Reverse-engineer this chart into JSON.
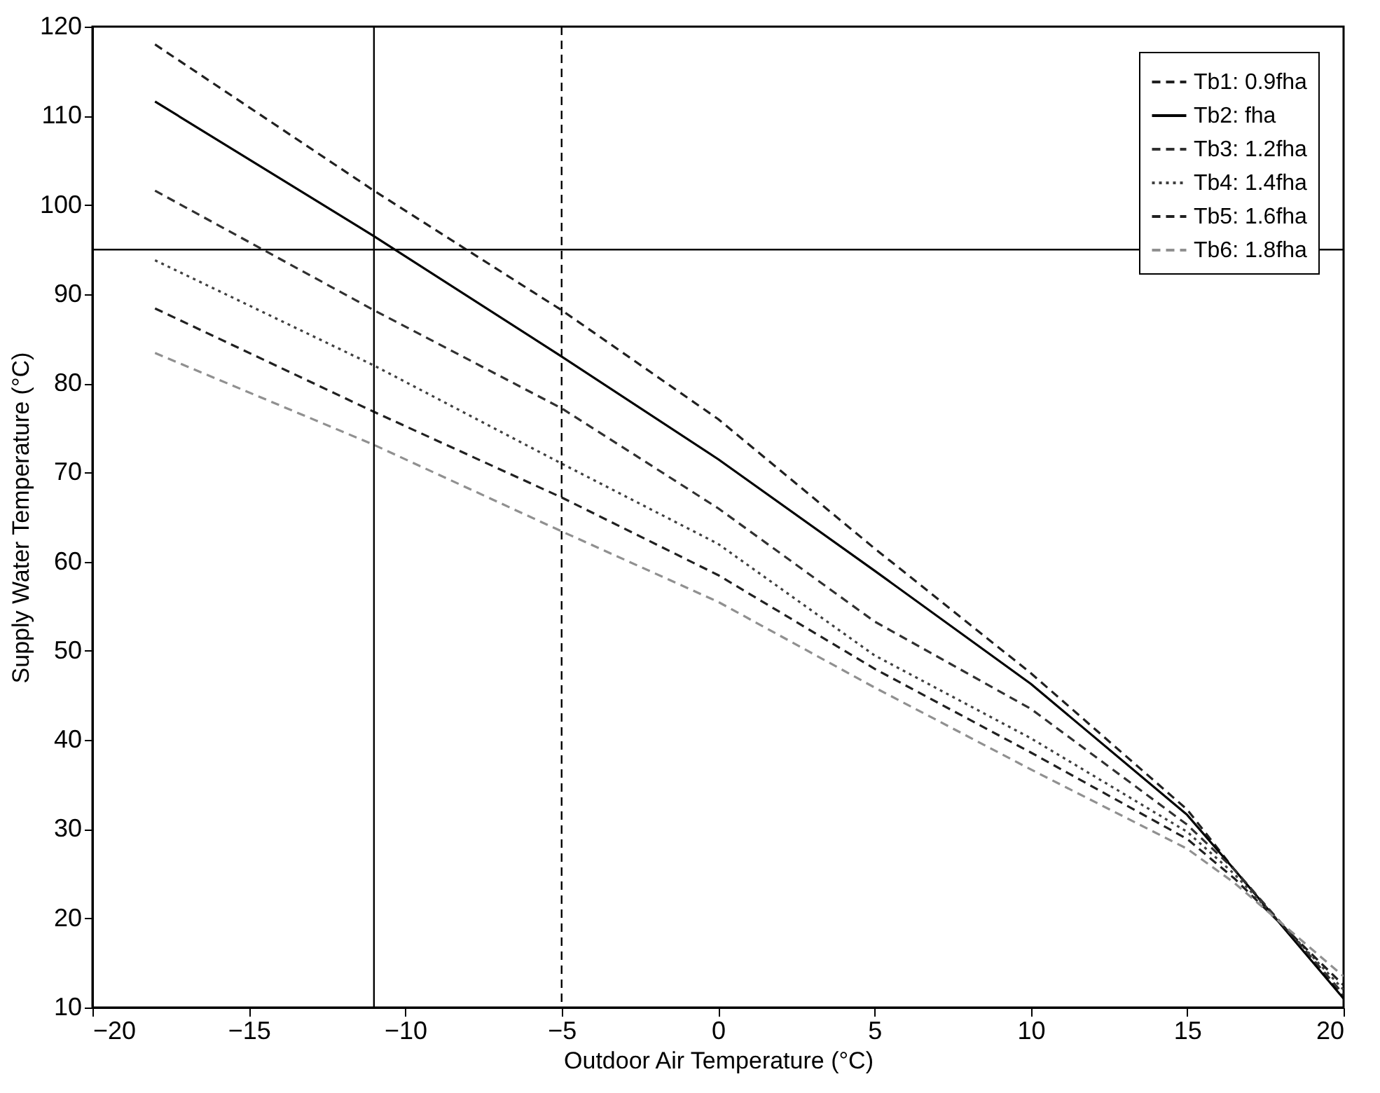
{
  "chart_data": {
    "type": "line",
    "xlabel": "Outdoor Air Temperature (°C)",
    "ylabel": "Supply Water Temperature (°C)",
    "x": [
      -18,
      -11,
      -5,
      0,
      5,
      10,
      15,
      16.5,
      20
    ],
    "series": [
      {
        "name": "Tb1: 0.9fha",
        "color": "#202020",
        "line_style": "dashed",
        "values": [
          118,
          101.6,
          88.2,
          76,
          61.5,
          47.5,
          32.2,
          25.5,
          11.2
        ]
      },
      {
        "name": "Tb2: fha",
        "color": "#000000",
        "line_style": "solid",
        "values": [
          111.6,
          96.5,
          83,
          71.5,
          59,
          46.3,
          31.6,
          25.5,
          11
        ]
      },
      {
        "name": "Tb3: 1.2fha",
        "color": "#303030",
        "line_style": "dashed",
        "values": [
          101.6,
          88.2,
          77.2,
          66,
          53.3,
          43.5,
          30.5,
          25.5,
          11.5
        ]
      },
      {
        "name": "Tb4: 1.4fha",
        "color": "#404040",
        "line_style": "dotted",
        "values": [
          93.8,
          82,
          71,
          62,
          49.5,
          40.2,
          29.7,
          25,
          12
        ]
      },
      {
        "name": "Tb5: 1.6fha",
        "color": "#202020",
        "line_style": "dashed",
        "values": [
          88.4,
          76.8,
          67.2,
          58.5,
          48,
          38.6,
          28.9,
          24.5,
          12.5
        ]
      },
      {
        "name": "Tb6: 1.8fha",
        "color": "#909090",
        "line_style": "dashed",
        "values": [
          83.4,
          73.1,
          63.4,
          55.5,
          45.9,
          36.7,
          27.8,
          24,
          13.5
        ]
      }
    ],
    "xlim": [
      -20,
      20
    ],
    "xticks": [
      -20,
      -15,
      -10,
      -5,
      0,
      5,
      10,
      15,
      20
    ],
    "ylim": [
      10,
      120
    ],
    "yticks": [
      10,
      20,
      30,
      40,
      50,
      60,
      70,
      80,
      90,
      100,
      110,
      120
    ],
    "ref_lines": [
      {
        "axis": "x",
        "value": -11,
        "color": "#000000",
        "line_style": "solid"
      },
      {
        "axis": "x",
        "value": -5,
        "color": "#000000",
        "line_style": "dashed"
      },
      {
        "axis": "y",
        "value": 95,
        "color": "#000000",
        "line_style": "solid"
      }
    ],
    "grid": false,
    "legend": "top right",
    "marker": "none"
  }
}
